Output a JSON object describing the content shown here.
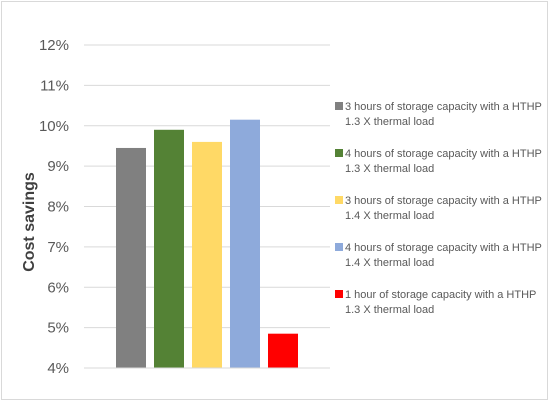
{
  "chart_data": {
    "type": "bar",
    "title": "",
    "xlabel": "",
    "ylabel": "Cost savings",
    "ylim": [
      4,
      12
    ],
    "ytick_labels": [
      "4%",
      "5%",
      "6%",
      "7%",
      "8%",
      "9%",
      "10%",
      "11%",
      "12%"
    ],
    "grid": true,
    "legend_position": "right",
    "series": [
      {
        "name": "3 hours of storage capacity with a HTHP 1.3 X thermal load",
        "line1": "3 hours of storage capacity with a HTHP",
        "line2": "1.3 X thermal load",
        "value": 9.45,
        "color": "#808080"
      },
      {
        "name": "4 hours of storage capacity with a HTHP 1.3 X thermal load",
        "line1": "4 hours of storage capacity with a HTHP",
        "line2": "1.3 X thermal load",
        "value": 9.9,
        "color": "#548235"
      },
      {
        "name": "3 hours of storage capacity with a HTHP 1.4 X thermal load",
        "line1": "3 hours of storage capacity with a HTHP",
        "line2": "1.4 X thermal load",
        "value": 9.6,
        "color": "#ffd966"
      },
      {
        "name": "4 hours of storage capacity with a HTHP 1.4 X thermal load",
        "line1": "4 hours of storage capacity with a HTHP",
        "line2": "1.4 X thermal load",
        "value": 10.15,
        "color": "#8eaadb"
      },
      {
        "name": "1 hour of storage capacity with a HTHP 1.3 X thermal load",
        "line1": "1 hour of storage capacity with a HTHP",
        "line2": "1.3 X thermal load",
        "value": 4.85,
        "color": "#ff0000"
      }
    ]
  }
}
